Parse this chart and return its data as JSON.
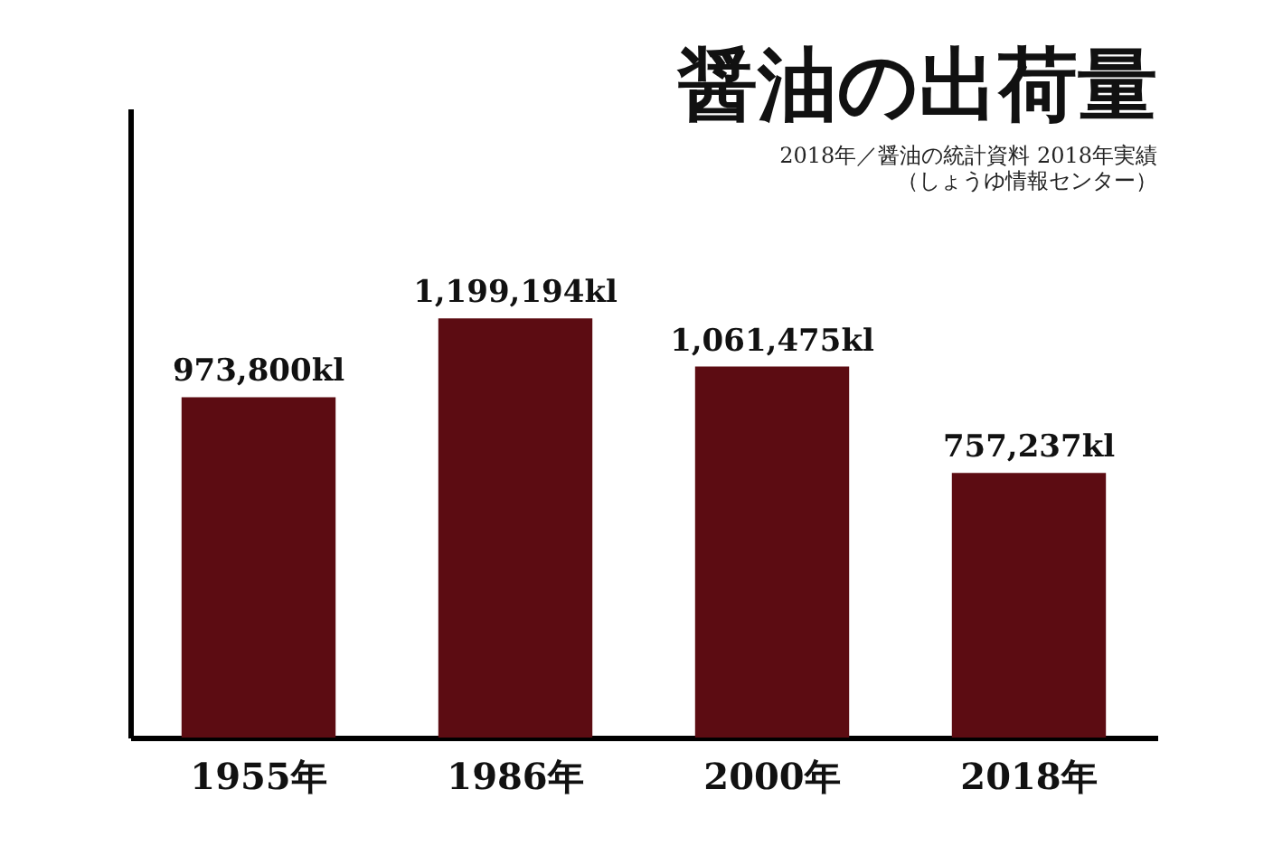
{
  "chart_data": {
    "type": "bar",
    "title": "醤油の出荷量",
    "subtitle": [
      "2018年／醤油の統計資料 2018年実績",
      "（しょうゆ情報センター）"
    ],
    "categories": [
      "1955年",
      "1986年",
      "2000年",
      "2018年"
    ],
    "values": [
      973800,
      1199194,
      1061475,
      757237
    ],
    "value_labels": [
      "973,800kl",
      "1,199,194kl",
      "1,061,475kl",
      "757,237kl"
    ],
    "color": "#5c0c12",
    "ylim": [
      0,
      1800000
    ],
    "grid": false
  }
}
